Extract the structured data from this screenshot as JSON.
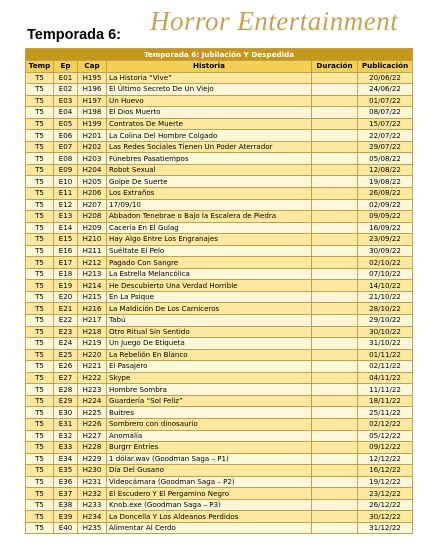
{
  "page": {
    "season_title": "Temporada 6:",
    "brand": "Horror Entertainment"
  },
  "table": {
    "caption": "Temporada 6: Jubilación Y Despedida",
    "headers": [
      "Temp",
      "Ep",
      "Cap",
      "Historia",
      "Duración",
      "Publicación"
    ],
    "rows": [
      [
        "T5",
        "E01",
        "H195",
        "La Historia “Vive”",
        "",
        "20/06/22"
      ],
      [
        "T5",
        "E02",
        "H196",
        "El Último Secreto De Un Viejo",
        "",
        "24/06/22"
      ],
      [
        "T5",
        "E03",
        "H197",
        "Un Huevo",
        "",
        "01/07/22"
      ],
      [
        "T5",
        "E04",
        "H198",
        "El Dios Muerto",
        "",
        "08/07/22"
      ],
      [
        "T5",
        "E05",
        "H199",
        "Contratos De Muerte",
        "",
        "15/07/22"
      ],
      [
        "T5",
        "E06",
        "H201",
        "La Colina Del Hombre Colgado",
        "",
        "22/07/22"
      ],
      [
        "T5",
        "E07",
        "H202",
        "Las Redes Sociales Tienen Un Poder Aterrador",
        "",
        "29/07/22"
      ],
      [
        "T5",
        "E08",
        "H203",
        "Fúnebres Pasatiempos",
        "",
        "05/08/22"
      ],
      [
        "T5",
        "E09",
        "H204",
        "Robot Sexual",
        "",
        "12/08/22"
      ],
      [
        "T5",
        "E10",
        "H205",
        "Golpe De Suerte",
        "",
        "19/08/22"
      ],
      [
        "T5",
        "E11",
        "H206",
        "Los Extraños",
        "",
        "26/08/22"
      ],
      [
        "T5",
        "E12",
        "H207",
        "17/09/10",
        "",
        "02/09/22"
      ],
      [
        "T5",
        "E13",
        "H208",
        "Abbadon Tenebrae o Bajo la Escalera de Piedra",
        "",
        "09/09/22"
      ],
      [
        "T5",
        "E14",
        "H209",
        "Cacería En El Gulag",
        "",
        "16/09/22"
      ],
      [
        "T5",
        "E15",
        "H210",
        "Hay Algo Entre Los Engranajes",
        "",
        "23/09/22"
      ],
      [
        "T5",
        "E16",
        "H211",
        "Suéltate El Pelo",
        "",
        "30/09/22"
      ],
      [
        "T5",
        "E17",
        "H212",
        "Pagado Con Sangre",
        "",
        "02/10/22"
      ],
      [
        "T5",
        "E18",
        "H213",
        "La Estrella Melancólica",
        "",
        "07/10/22"
      ],
      [
        "T5",
        "E19",
        "H214",
        "He Descubierto Una Verdad Horrible",
        "",
        "14/10/22"
      ],
      [
        "T5",
        "E20",
        "H215",
        "En La Psique",
        "",
        "21/10/22"
      ],
      [
        "T5",
        "E21",
        "H216",
        "La Maldición De Los Carniceros",
        "",
        "28/10/22"
      ],
      [
        "T5",
        "E22",
        "H217",
        "Tabú",
        "",
        "29/10/22"
      ],
      [
        "T5",
        "E23",
        "H218",
        "Otro Ritual Sin Sentido",
        "",
        "30/10/22"
      ],
      [
        "T5",
        "E24",
        "H219",
        "Un Juego De Etiqueta",
        "",
        "31/10/22"
      ],
      [
        "T5",
        "E25",
        "H220",
        "La Rebelión En Blanco",
        "",
        "01/11/22"
      ],
      [
        "T5",
        "E26",
        "H221",
        "El Pasajero",
        "",
        "02/11/22"
      ],
      [
        "T5",
        "E27",
        "H222",
        "Skype",
        "",
        "04/11/22"
      ],
      [
        "T5",
        "E28",
        "H223",
        "Hombre Sombra",
        "",
        "11/11/22"
      ],
      [
        "T5",
        "E29",
        "H224",
        "Guardería “Sol Feliz”",
        "",
        "18/11/22"
      ],
      [
        "T5",
        "E30",
        "H225",
        "Buitres",
        "",
        "25/11/22"
      ],
      [
        "T5",
        "E31",
        "H226",
        "Sombrero con dinosaurio",
        "",
        "02/12/22"
      ],
      [
        "T5",
        "E32",
        "H227",
        "Anomalía",
        "",
        "05/12/22"
      ],
      [
        "T5",
        "E33",
        "H228",
        "Burgrr Entries",
        "",
        "09/12/22"
      ],
      [
        "T5",
        "E34",
        "H229",
        "1 dólar.wav (Goodman Saga – P1)",
        "",
        "12/12/22"
      ],
      [
        "T5",
        "E35",
        "H230",
        "Día Del Gusano",
        "",
        "16/12/22"
      ],
      [
        "T5",
        "E36",
        "H231",
        "Videocámara (Goodman Saga – P2)",
        "",
        "19/12/22"
      ],
      [
        "T5",
        "E37",
        "H232",
        "El Escudero Y El Pergamino Negro",
        "",
        "23/12/22"
      ],
      [
        "T5",
        "E38",
        "H233",
        "Knob.exe (Goodman Saga – P3)",
        "",
        "26/12/22"
      ],
      [
        "T5",
        "E39",
        "H234",
        "La Doncella Y Los Aldeanos Perdidos",
        "",
        "30/12/22"
      ],
      [
        "T5",
        "E40",
        "H235",
        "Alimentar Al Cerdo",
        "",
        "31/12/22"
      ]
    ]
  }
}
